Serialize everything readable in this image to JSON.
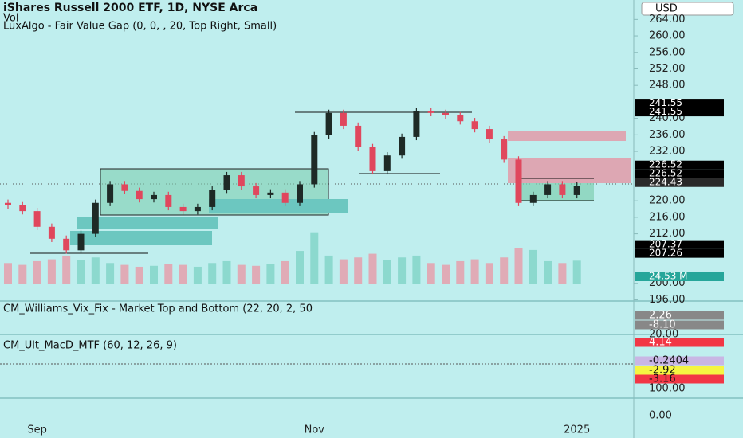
{
  "chart_data": {
    "type": "candlestick",
    "title": "iShares Russell 2000 ETF, 1D, NYSE Arca",
    "subtitle": [
      "Vol",
      "LuxAlgo - Fair Value Gap (0, 0, , 20, Top Right, Small)"
    ],
    "currency": "USD",
    "categories": [
      null,
      null,
      "Sep",
      null,
      null,
      null,
      null,
      null,
      null,
      null,
      null,
      null,
      null,
      null,
      null,
      null,
      null,
      null,
      null,
      null,
      null,
      "Nov",
      null,
      null,
      null,
      null,
      null,
      null,
      null,
      null,
      null,
      null,
      null,
      null,
      null,
      null,
      null,
      null,
      null,
      "2025"
    ],
    "open": [
      219.5,
      218.9,
      217.5,
      213.7,
      210.8,
      208,
      212,
      219.5,
      224,
      222.4,
      220.4,
      221.4,
      218.5,
      217.5,
      218.5,
      222.7,
      226.2,
      223.5,
      221.4,
      222,
      219.5,
      224,
      235.9,
      241.3,
      238.2,
      233,
      227.2,
      231,
      235.5,
      241.7,
      241.3,
      240.7,
      239.3,
      237.4,
      234.9,
      230,
      219.5,
      221.4,
      224,
      221.4
    ],
    "high": [
      220.3,
      219.7,
      218.3,
      214.5,
      211.6,
      212.8,
      220.3,
      224.8,
      224.8,
      223.2,
      222.2,
      222.2,
      219.3,
      219.3,
      223.5,
      227,
      227,
      224.3,
      222.8,
      222.8,
      224.8,
      236.7,
      242.1,
      242.1,
      239,
      233.8,
      231.8,
      236.3,
      242.5,
      242.5,
      242.1,
      241.5,
      240.1,
      238.2,
      235.7,
      230.8,
      222.2,
      224.8,
      224.8,
      224.5
    ],
    "low": [
      218.1,
      216.7,
      212.9,
      210,
      207.2,
      207.2,
      211.2,
      218.7,
      221.6,
      219.6,
      219.6,
      217.7,
      216.7,
      216.7,
      217.7,
      221.9,
      222.7,
      220.6,
      220.6,
      218.7,
      218.7,
      223.2,
      235.1,
      237.4,
      232.2,
      226.4,
      226.4,
      230.2,
      234.7,
      240.5,
      239.9,
      238.5,
      236.6,
      234.1,
      229.2,
      218.7,
      218.7,
      220.6,
      220.6,
      220.6
    ],
    "close": [
      218.9,
      217.5,
      213.7,
      210.8,
      208,
      212,
      219.5,
      224,
      222.4,
      220.4,
      221.4,
      218.5,
      217.5,
      218.5,
      222.7,
      226.2,
      223.5,
      221.4,
      222,
      219.5,
      224,
      235.9,
      241.3,
      238.2,
      233,
      227.2,
      231,
      235.5,
      241.7,
      241.3,
      240.7,
      239.3,
      237.4,
      234.9,
      230,
      219.5,
      221.4,
      224,
      221.4,
      223.7
    ],
    "volume": [
      22,
      20,
      24,
      26,
      30,
      25,
      28,
      22,
      20,
      18,
      19,
      21,
      20,
      18,
      22,
      24,
      20,
      19,
      21,
      24,
      35,
      55,
      30,
      26,
      28,
      32,
      25,
      28,
      30,
      22,
      20,
      24,
      26,
      22,
      28,
      38,
      36,
      24,
      22,
      24.53
    ],
    "volume_lim": [
      0,
      65
    ],
    "volume_label": {
      "value": 24.53,
      "label": "24.53 M"
    },
    "up_color": "#1e2a26",
    "down_color": "#e0475d",
    "volume_up_color": "#7fd3c6",
    "volume_down_color": "#e99aa8",
    "ylim": [
      195.7,
      268.7
    ],
    "yticks": [
      {
        "value": 264,
        "label": "264.00"
      },
      {
        "value": 260,
        "label": "260.00"
      },
      {
        "value": 256,
        "label": "256.00"
      },
      {
        "value": 252,
        "label": "252.00"
      },
      {
        "value": 248,
        "label": "248.00"
      },
      {
        "value": 240,
        "label": "240.00"
      },
      {
        "value": 236,
        "label": "236.00"
      },
      {
        "value": 232,
        "label": "232.00"
      },
      {
        "value": 220,
        "label": "220.00"
      },
      {
        "value": 216,
        "label": "216.00"
      },
      {
        "value": 212,
        "label": "212.00"
      },
      {
        "value": 200,
        "label": "200.00"
      },
      {
        "value": 196,
        "label": "196.00"
      }
    ],
    "price_labels": [
      241.55,
      241.55,
      226.52,
      226.52,
      224.43,
      207.37,
      207.26
    ],
    "indicators": [
      {
        "title": "CM_Williams_Vix_Fix - Market Top and Bottom (22, 20, 2, 50",
        "labels": [
          "2.26",
          "-8.10",
          "20.00"
        ]
      },
      {
        "title": "CM_Ult_MacD_MTF (60, 12, 26, 9)",
        "labels": [
          "4.14",
          "-0.2404",
          "-2.92",
          "-3.16",
          "100.00"
        ]
      }
    ],
    "bottom_tick": "0.00"
  }
}
